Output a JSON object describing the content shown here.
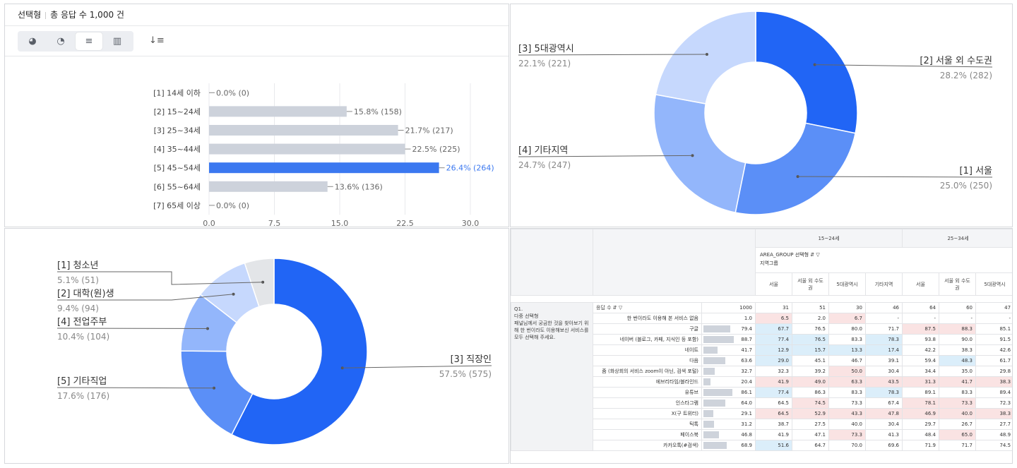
{
  "panel_header": {
    "type_label": "선택형",
    "response_count": "총 응답 수 1,000 건"
  },
  "toolbar": {
    "buttons": [
      {
        "icon": "pie-chart-icon",
        "glyph": "◕"
      },
      {
        "icon": "donut-chart-icon",
        "glyph": "◔"
      },
      {
        "icon": "horizontal-bar-chart-icon",
        "glyph": "≡"
      },
      {
        "icon": "vertical-bar-chart-icon",
        "glyph": "▥"
      }
    ],
    "active_index": 2,
    "sort_icon": "sort-desc-icon",
    "sort_glyph": "↓≡"
  },
  "colors": {
    "highlight": "#3b78f0",
    "bar": "#cdd2db",
    "donut": [
      "#2165f5",
      "#5b8ff7",
      "#93b6fb",
      "#c6d8fd",
      "#e3e5e8"
    ]
  },
  "chart_data": [
    {
      "type": "bar",
      "orientation": "horizontal",
      "categories": [
        "[1] 14세 이하",
        "[2] 15~24세",
        "[3] 25~34세",
        "[4] 35~44세",
        "[5] 45~54세",
        "[6] 55~64세",
        "[7] 65세 이상"
      ],
      "values": [
        0.0,
        15.8,
        21.7,
        22.5,
        26.4,
        13.6,
        0.0
      ],
      "labels": [
        "0.0% (0)",
        "15.8% (158)",
        "21.7% (217)",
        "22.5% (225)",
        "26.4% (264)",
        "13.6% (136)",
        "0.0% (0)"
      ],
      "highlight_index": 4,
      "xticks": [
        "0.0",
        "7.5",
        "15.0",
        "22.5",
        "30.0"
      ],
      "xlim": [
        0,
        30
      ],
      "grid": true
    },
    {
      "type": "pie",
      "style": "donut",
      "slices": [
        {
          "name": "[2] 서울 외 수도권",
          "pct": "28.2% (282)",
          "value": 28.2,
          "color": "#2165f5"
        },
        {
          "name": "[1] 서울",
          "pct": "25.0% (250)",
          "value": 25.0,
          "color": "#5b8ff7"
        },
        {
          "name": "[4] 기타지역",
          "pct": "24.7% (247)",
          "value": 24.7,
          "color": "#93b6fb"
        },
        {
          "name": "[3] 5대광역시",
          "pct": "22.1% (221)",
          "value": 22.1,
          "color": "#c6d8fd"
        }
      ]
    },
    {
      "type": "pie",
      "style": "donut",
      "slices": [
        {
          "name": "[3] 직장인",
          "pct": "57.5% (575)",
          "value": 57.5,
          "color": "#2165f5"
        },
        {
          "name": "[5] 기타직업",
          "pct": "17.6% (176)",
          "value": 17.6,
          "color": "#5b8ff7"
        },
        {
          "name": "[4] 전업주부",
          "pct": "10.4% (104)",
          "value": 10.4,
          "color": "#93b6fb"
        },
        {
          "name": "[2] 대학(원)생",
          "pct": "9.4% (94)",
          "value": 9.4,
          "color": "#c6d8fd"
        },
        {
          "name": "[1] 청소년",
          "pct": "5.1% (51)",
          "value": 5.1,
          "color": "#e3e5e8"
        }
      ]
    }
  ],
  "crosstab": {
    "age_groups": [
      "15~24세",
      "25~34세"
    ],
    "filter_title": "AREA_GROUP 선택형",
    "filter_sub": "지역그룹",
    "columns": [
      "서울",
      "서울 외 수도권",
      "5대광역시",
      "기타지역",
      "서울",
      "서울 외 수도권",
      "5대광역시"
    ],
    "question_id": "Q1.",
    "question_type": "다중 선택형",
    "question_text": "패널님께서 궁금한 것을 찾아보기 위해 한 번이라도 이용해보신 서비스를 모두 선택해 주세요.",
    "count_label": "응답 수",
    "rows": [
      {
        "label": "",
        "total": "1000",
        "bar": 100,
        "cells": [
          "31",
          "51",
          "30",
          "46",
          "64",
          "60",
          "47"
        ],
        "hl": [
          "",
          "",
          "",
          "",
          "",
          "",
          ""
        ]
      },
      {
        "label": "한 번이라도 이용해 본 서비스 없음",
        "total": "1.0",
        "bar": 0,
        "cells": [
          "6.5",
          "2.0",
          "6.7",
          "-",
          "-",
          "-",
          "-"
        ],
        "hl": [
          "p",
          "",
          "p",
          "",
          "",
          "",
          ""
        ]
      },
      {
        "label": "구글",
        "total": "79.4",
        "bar": 79.4,
        "cells": [
          "67.7",
          "76.5",
          "80.0",
          "71.7",
          "87.5",
          "88.3",
          "85.1"
        ],
        "hl": [
          "b",
          "",
          "",
          "",
          "p",
          "p",
          ""
        ]
      },
      {
        "label": "네이버 (블로그, 카페, 지식인 등 포함)",
        "total": "88.7",
        "bar": 88.7,
        "cells": [
          "77.4",
          "76.5",
          "83.3",
          "78.3",
          "93.8",
          "90.0",
          "91.5"
        ],
        "hl": [
          "b",
          "b",
          "",
          "b",
          "",
          "",
          ""
        ]
      },
      {
        "label": "네이트",
        "total": "41.7",
        "bar": 41.7,
        "cells": [
          "12.9",
          "15.7",
          "13.3",
          "17.4",
          "42.2",
          "38.3",
          "42.6"
        ],
        "hl": [
          "b",
          "b",
          "b",
          "b",
          "",
          "",
          ""
        ]
      },
      {
        "label": "다음",
        "total": "63.6",
        "bar": 63.6,
        "cells": [
          "29.0",
          "45.1",
          "46.7",
          "39.1",
          "59.4",
          "48.3",
          "61.7"
        ],
        "hl": [
          "b",
          "",
          "",
          "",
          "",
          "b",
          ""
        ]
      },
      {
        "label": "줌 (화상회의 서비스 zoom이 아닌, 검색 포털)",
        "total": "32.7",
        "bar": 32.7,
        "cells": [
          "32.3",
          "39.2",
          "50.0",
          "30.4",
          "34.4",
          "35.0",
          "29.8"
        ],
        "hl": [
          "",
          "",
          "p",
          "",
          "",
          "",
          ""
        ]
      },
      {
        "label": "에브리타임/블라인드",
        "total": "20.4",
        "bar": 20.4,
        "cells": [
          "41.9",
          "49.0",
          "63.3",
          "43.5",
          "31.3",
          "41.7",
          "38.3"
        ],
        "hl": [
          "p",
          "p",
          "p",
          "p",
          "p",
          "p",
          "p"
        ]
      },
      {
        "label": "유튜브",
        "total": "86.1",
        "bar": 86.1,
        "cells": [
          "77.4",
          "86.3",
          "83.3",
          "78.3",
          "89.1",
          "83.3",
          "89.4"
        ],
        "hl": [
          "b",
          "",
          "",
          "b",
          "",
          "",
          ""
        ]
      },
      {
        "label": "인스타그램",
        "total": "64.0",
        "bar": 64.0,
        "cells": [
          "64.5",
          "74.5",
          "73.3",
          "67.4",
          "78.1",
          "73.3",
          "72.3"
        ],
        "hl": [
          "",
          "p",
          "",
          "",
          "p",
          "p",
          ""
        ]
      },
      {
        "label": "X(구 트위터)",
        "total": "29.1",
        "bar": 29.1,
        "cells": [
          "64.5",
          "52.9",
          "43.3",
          "47.8",
          "46.9",
          "40.0",
          "38.3"
        ],
        "hl": [
          "p",
          "p",
          "p",
          "p",
          "p",
          "p",
          "p"
        ]
      },
      {
        "label": "틱톡",
        "total": "31.2",
        "bar": 31.2,
        "cells": [
          "38.7",
          "27.5",
          "40.0",
          "30.4",
          "29.7",
          "26.7",
          "27.7"
        ],
        "hl": [
          "",
          "",
          "",
          "",
          "",
          "",
          ""
        ]
      },
      {
        "label": "페이스북",
        "total": "46.8",
        "bar": 46.8,
        "cells": [
          "41.9",
          "47.1",
          "73.3",
          "41.3",
          "48.4",
          "65.0",
          "48.9"
        ],
        "hl": [
          "",
          "",
          "p",
          "",
          "",
          "p",
          ""
        ]
      },
      {
        "label": "카카오톡(#검색)",
        "total": "68.9",
        "bar": 68.9,
        "cells": [
          "51.6",
          "64.7",
          "70.0",
          "69.6",
          "71.9",
          "71.7",
          "74.5"
        ],
        "hl": [
          "b",
          "",
          "",
          "",
          "",
          "",
          ""
        ]
      }
    ]
  }
}
